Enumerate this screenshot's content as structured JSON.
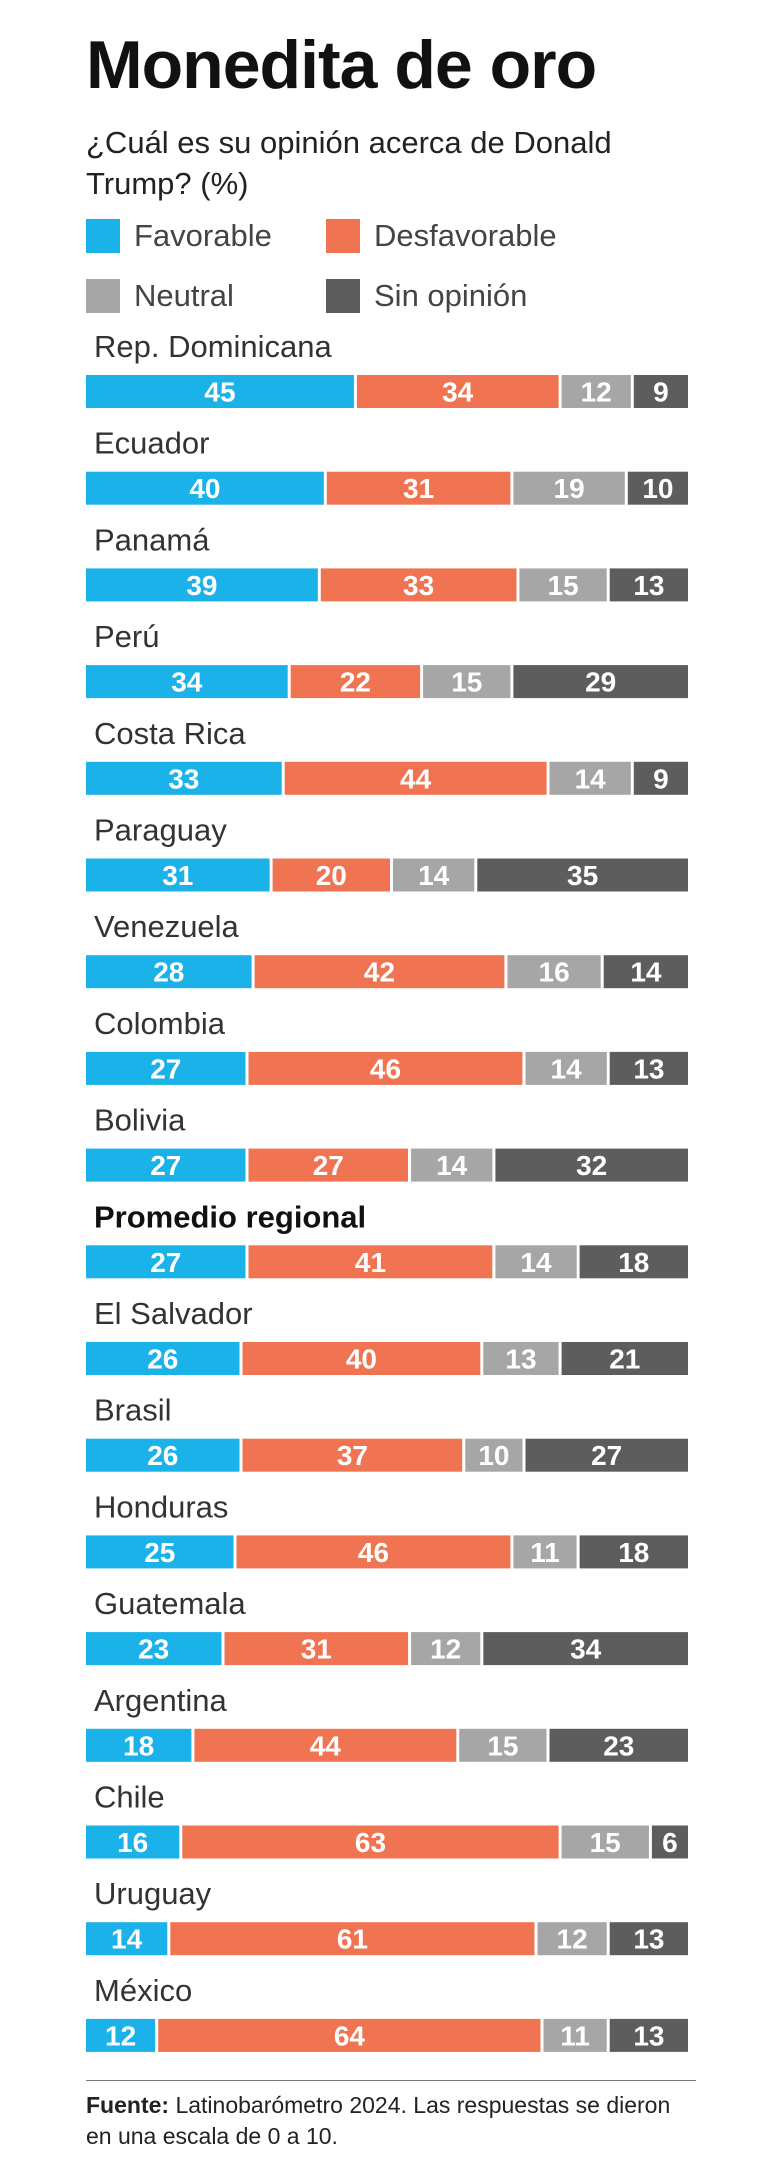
{
  "header": {
    "title": "Monedita de oro",
    "subtitle": "¿Cuál es su opinión acerca de Donald Trump? (%)"
  },
  "colors": {
    "favorable": "#1ab2e8",
    "desfavorable": "#f07452",
    "neutral": "#a6a6a6",
    "sin_opinion": "#5d5d5d"
  },
  "legend": [
    {
      "label": "Favorable",
      "color_key": "favorable"
    },
    {
      "label": "Desfavorable",
      "color_key": "desfavorable"
    },
    {
      "label": "Neutral",
      "color_key": "neutral"
    },
    {
      "label": "Sin opinión",
      "color_key": "sin_opinion"
    }
  ],
  "chart_data": {
    "type": "bar",
    "orientation": "horizontal",
    "stacked": true,
    "title": "Monedita de oro",
    "subtitle": "¿Cuál es su opinión acerca de Donald Trump? (%)",
    "xlim": [
      0,
      100
    ],
    "grid": false,
    "legend_position": "top",
    "categories": [
      "Rep. Dominicana",
      "Ecuador",
      "Panamá",
      "Perú",
      "Costa Rica",
      "Paraguay",
      "Venezuela",
      "Colombia",
      "Bolivia",
      "Promedio regional",
      "El Salvador",
      "Brasil",
      "Honduras",
      "Guatemala",
      "Argentina",
      "Chile",
      "Uruguay",
      "México"
    ],
    "highlight_category": "Promedio regional",
    "series": [
      {
        "name": "Favorable",
        "values": [
          45,
          40,
          39,
          34,
          33,
          31,
          28,
          27,
          27,
          27,
          26,
          26,
          25,
          23,
          18,
          16,
          14,
          12
        ]
      },
      {
        "name": "Desfavorable",
        "values": [
          34,
          31,
          33,
          22,
          44,
          20,
          42,
          46,
          27,
          41,
          40,
          37,
          46,
          31,
          44,
          63,
          61,
          64
        ]
      },
      {
        "name": "Neutral",
        "values": [
          12,
          19,
          15,
          15,
          14,
          14,
          16,
          14,
          14,
          14,
          13,
          10,
          11,
          12,
          15,
          15,
          12,
          11
        ]
      },
      {
        "name": "Sin opinión",
        "values": [
          9,
          10,
          13,
          29,
          9,
          35,
          14,
          13,
          32,
          18,
          21,
          27,
          18,
          34,
          23,
          6,
          13,
          13
        ]
      }
    ]
  },
  "footnote": {
    "source_label": "Fuente:",
    "source_text": "Latinobarómetro 2024. Las respuestas se dieron en una escala de 0 a 10."
  }
}
